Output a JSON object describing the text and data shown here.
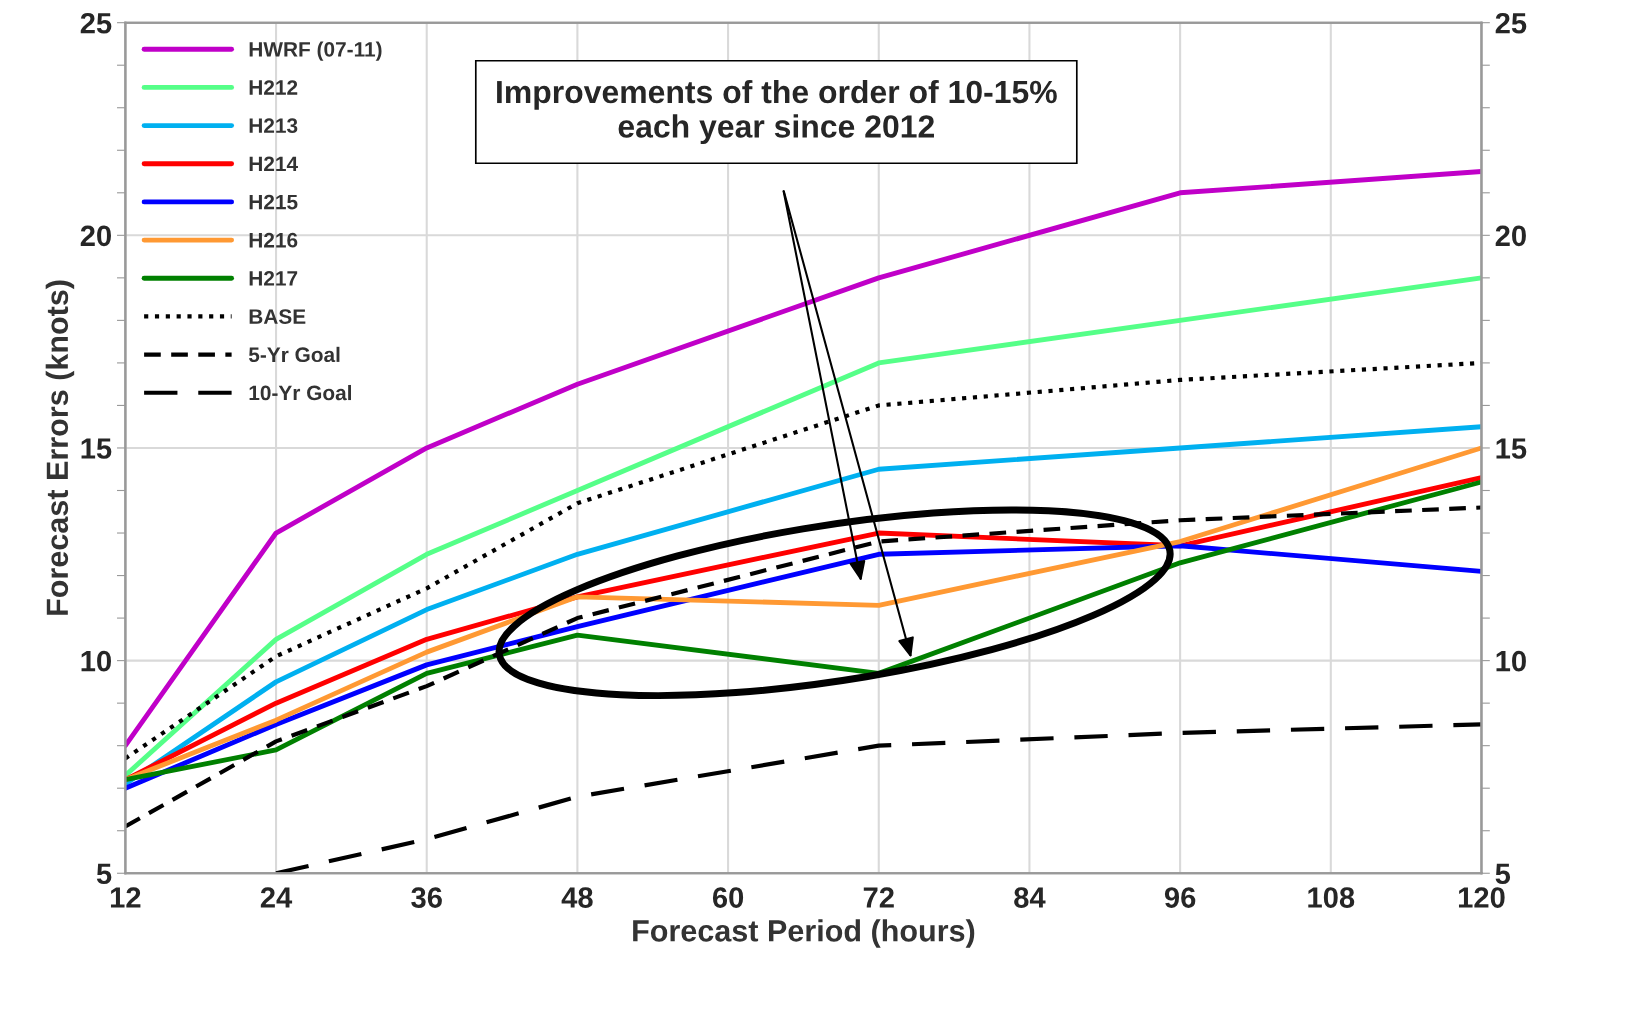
{
  "chart_data": {
    "type": "line",
    "xlabel": "Forecast Period (hours)",
    "ylabel": "Forecast Errors (knots)",
    "x": [
      12,
      24,
      36,
      48,
      72,
      96,
      120
    ],
    "xlim": [
      12,
      120
    ],
    "xticks": [
      12,
      24,
      36,
      48,
      60,
      72,
      84,
      96,
      108,
      120
    ],
    "ylim": [
      5,
      25
    ],
    "yticks": [
      5,
      {
        "value": 6,
        "label": null
      },
      {
        "value": 7,
        "label": null
      },
      {
        "value": 8,
        "label": null
      },
      {
        "value": 9,
        "label": null
      },
      10,
      {
        "value": 11,
        "label": null
      },
      {
        "value": 12,
        "label": null
      },
      {
        "value": 13,
        "label": null
      },
      {
        "value": 14,
        "label": null
      },
      15,
      {
        "value": 16,
        "label": null
      },
      {
        "value": 17,
        "label": null
      },
      {
        "value": 18,
        "label": null
      },
      {
        "value": 19,
        "label": null
      },
      20,
      {
        "value": 21,
        "label": null
      },
      {
        "value": 22,
        "label": null
      },
      {
        "value": 23,
        "label": null
      },
      {
        "value": 24,
        "label": null
      },
      25
    ],
    "y2lim": [
      5,
      25
    ],
    "y2ticks": [
      5,
      {
        "value": 6,
        "label": null
      },
      {
        "value": 7,
        "label": null
      },
      {
        "value": 8,
        "label": null
      },
      {
        "value": 9,
        "label": null
      },
      10,
      {
        "value": 11,
        "label": null
      },
      {
        "value": 12,
        "label": null
      },
      {
        "value": 13,
        "label": null
      },
      {
        "value": 14,
        "label": null
      },
      15,
      {
        "value": 16,
        "label": null
      },
      {
        "value": 17,
        "label": null
      },
      {
        "value": 18,
        "label": null
      },
      {
        "value": 19,
        "label": null
      },
      20,
      {
        "value": 21,
        "label": null
      },
      {
        "value": 22,
        "label": null
      },
      {
        "value": 23,
        "label": null
      },
      {
        "value": 24,
        "label": null
      },
      25
    ],
    "grid": true,
    "legend": "top left",
    "marker": "none",
    "series": [
      {
        "name": "HWRF (07-11)",
        "color": "#c000c8",
        "values": [
          8.0,
          13.0,
          15.0,
          16.5,
          19.0,
          21.0,
          21.5
        ]
      },
      {
        "name": "H212",
        "color": "#55ff88",
        "values": [
          7.3,
          10.5,
          12.5,
          14.0,
          17.0,
          18.0,
          19.0
        ]
      },
      {
        "name": "H213",
        "color": "#00b0f0",
        "values": [
          7.1,
          9.5,
          11.2,
          12.5,
          14.5,
          15.0,
          15.5
        ]
      },
      {
        "name": "H214",
        "color": "#ff0000",
        "values": [
          7.2,
          9.0,
          10.5,
          11.5,
          13.0,
          12.7,
          14.3
        ]
      },
      {
        "name": "H215",
        "color": "#0000ff",
        "values": [
          7.0,
          8.5,
          9.9,
          10.8,
          12.5,
          12.7,
          12.1
        ]
      },
      {
        "name": "H216",
        "color": "#ff9933",
        "values": [
          7.2,
          8.6,
          10.2,
          11.5,
          11.3,
          12.8,
          15.0
        ]
      },
      {
        "name": "H217",
        "color": "#008000",
        "values": [
          7.2,
          7.9,
          9.7,
          10.6,
          9.7,
          12.3,
          14.2
        ]
      },
      {
        "name": "BASE",
        "color": "#000000",
        "line_style": "dotted",
        "values": [
          7.7,
          10.1,
          11.7,
          13.7,
          16.0,
          16.6,
          17.0
        ]
      },
      {
        "name": "5-Yr Goal",
        "color": "#000000",
        "line_style": "dashed",
        "values": [
          6.1,
          8.1,
          9.4,
          11.0,
          12.8,
          13.3,
          13.6
        ]
      },
      {
        "name": "10-Yr Goal",
        "color": "#000000",
        "line_style": "long dashed",
        "values": [
          null,
          5.0,
          5.8,
          6.8,
          8.0,
          8.3,
          8.5
        ]
      }
    ],
    "annotations": [
      "Improvements of the order of 10-15%\neach year since 2012"
    ]
  }
}
